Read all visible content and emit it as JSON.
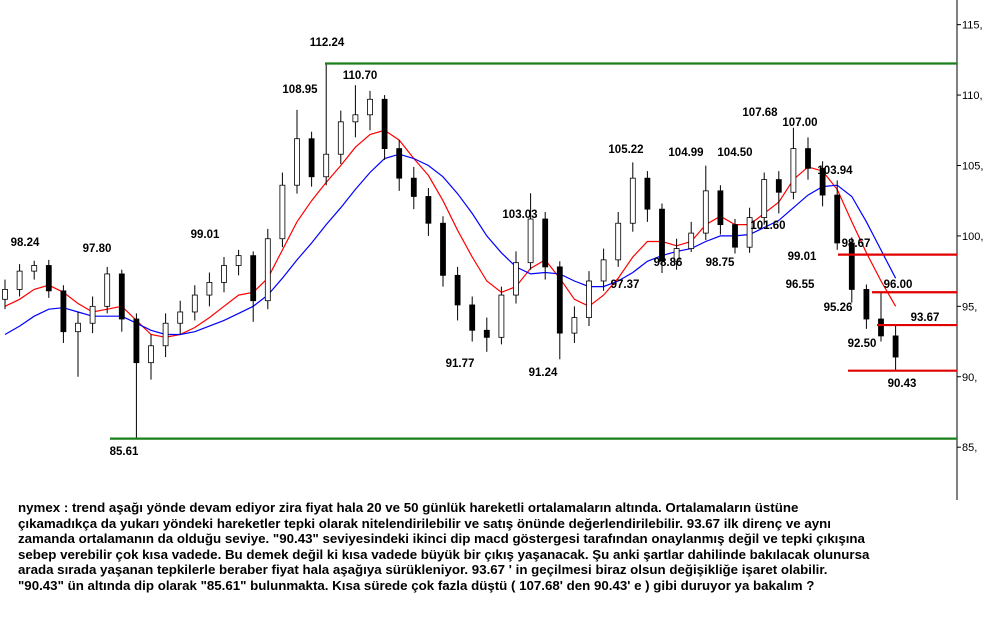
{
  "chart_data": {
    "type": "candlestick",
    "ylim": [
      81.25,
      116.75
    ],
    "yticks": [
      {
        "value": 115,
        "label": "115,"
      },
      {
        "value": 110,
        "label": "110,"
      },
      {
        "value": 105,
        "label": "105,"
      },
      {
        "value": 100,
        "label": "100,"
      },
      {
        "value": 95,
        "label": "95,"
      },
      {
        "value": 90,
        "label": "90,"
      },
      {
        "value": 85,
        "label": "85,"
      }
    ],
    "up_color": "#ffffff",
    "down_color": "#000000",
    "wick_color": "#000000",
    "open": [
      95.5,
      96.2,
      97.5,
      97.9,
      96.1,
      93.2,
      93.8,
      95.0,
      97.3,
      94.1,
      91.0,
      92.2,
      93.8,
      94.6,
      95.8,
      96.7,
      97.9,
      98.6,
      95.4,
      99.8,
      103.6,
      106.9,
      104.2,
      105.8,
      108.1,
      108.6,
      109.7,
      106.2,
      104.1,
      102.8,
      100.9,
      97.2,
      95.1,
      93.3,
      92.8,
      95.8,
      98.1,
      101.2,
      97.8,
      93.1,
      94.2,
      96.8,
      98.3,
      100.9,
      104.1,
      101.9,
      98.2,
      99.1,
      100.2,
      103.2,
      100.8,
      99.2,
      101.3,
      104.0,
      103.1,
      106.2,
      104.8,
      102.9,
      99.5,
      96.2,
      94.1,
      92.9
    ],
    "high": [
      96.9,
      98.0,
      98.24,
      98.3,
      96.5,
      94.6,
      95.7,
      97.8,
      97.6,
      94.5,
      93.0,
      94.5,
      95.4,
      96.5,
      97.4,
      98.5,
      99.01,
      98.9,
      100.5,
      104.5,
      108.95,
      107.4,
      112.24,
      108.9,
      110.7,
      110.3,
      110.0,
      106.8,
      104.9,
      103.4,
      101.4,
      97.8,
      95.7,
      94.2,
      96.4,
      98.9,
      103.03,
      101.7,
      98.2,
      95.0,
      97.5,
      99.1,
      101.7,
      105.22,
      104.6,
      102.3,
      99.8,
      101.0,
      104.99,
      103.6,
      101.2,
      102.0,
      104.5,
      104.6,
      107.68,
      107.0,
      105.3,
      103.94,
      99.9,
      96.55,
      96.0,
      93.67
    ],
    "low": [
      94.8,
      95.7,
      96.9,
      95.6,
      92.4,
      90.0,
      93.1,
      94.5,
      93.2,
      85.61,
      89.8,
      91.4,
      93.0,
      94.0,
      95.0,
      96.0,
      97.2,
      93.9,
      94.8,
      99.2,
      103.0,
      103.5,
      103.6,
      105.1,
      107.0,
      107.5,
      105.4,
      103.2,
      101.9,
      100.0,
      96.4,
      94.0,
      92.5,
      91.77,
      92.3,
      95.2,
      97.6,
      96.9,
      91.24,
      92.4,
      93.6,
      96.1,
      97.8,
      100.3,
      101.0,
      97.37,
      97.6,
      98.86,
      99.7,
      100.1,
      98.75,
      98.8,
      100.8,
      101.6,
      102.6,
      104.0,
      102.1,
      99.01,
      95.26,
      93.4,
      92.5,
      90.43
    ],
    "close": [
      96.2,
      97.5,
      97.9,
      96.1,
      93.2,
      93.8,
      95.0,
      97.3,
      94.1,
      91.0,
      92.2,
      93.8,
      94.6,
      95.8,
      96.7,
      97.9,
      98.6,
      95.4,
      99.8,
      103.6,
      106.9,
      104.2,
      105.8,
      108.1,
      108.6,
      109.7,
      106.2,
      104.1,
      102.8,
      100.9,
      97.2,
      95.1,
      93.3,
      92.8,
      95.8,
      98.1,
      101.2,
      97.8,
      93.1,
      94.2,
      96.8,
      98.3,
      100.9,
      104.1,
      101.9,
      98.2,
      99.1,
      100.2,
      103.2,
      100.8,
      99.2,
      101.3,
      104.0,
      103.1,
      106.2,
      104.8,
      102.9,
      99.5,
      96.2,
      94.1,
      92.9,
      91.4
    ],
    "moving_averages": [
      {
        "color": "#ff0000",
        "values": [
          95.0,
          95.5,
          96.2,
          96.5,
          96.0,
          95.2,
          94.6,
          94.8,
          95.0,
          94.0,
          93.0,
          92.8,
          93.0,
          93.5,
          94.2,
          95.0,
          95.8,
          96.0,
          97.0,
          99.0,
          101.0,
          102.5,
          103.8,
          105.0,
          106.3,
          107.2,
          107.5,
          106.8,
          105.5,
          104.3,
          102.5,
          100.4,
          98.5,
          96.8,
          96.0,
          96.4,
          97.7,
          98.3,
          97.0,
          95.5,
          95.0,
          95.8,
          97.0,
          98.5,
          99.6,
          99.6,
          99.3,
          99.6,
          100.8,
          101.4,
          100.8,
          100.8,
          101.6,
          102.4,
          104.0,
          104.9,
          104.6,
          103.3,
          101.0,
          98.8,
          96.8,
          95.0
        ]
      },
      {
        "color": "#0000ff",
        "values": [
          93.0,
          93.6,
          94.3,
          94.8,
          94.9,
          94.6,
          94.3,
          94.3,
          94.3,
          93.8,
          93.3,
          93.0,
          93.0,
          93.2,
          93.6,
          94.0,
          94.5,
          95.0,
          95.8,
          97.0,
          98.3,
          99.5,
          100.8,
          102.0,
          103.3,
          104.5,
          105.5,
          105.8,
          105.5,
          105.0,
          104.2,
          103.0,
          101.6,
          100.0,
          98.8,
          97.8,
          97.3,
          97.4,
          97.3,
          96.8,
          96.4,
          96.4,
          96.8,
          97.4,
          98.2,
          98.6,
          98.9,
          99.1,
          99.6,
          100.0,
          100.0,
          100.1,
          100.6,
          101.1,
          102.0,
          102.9,
          103.5,
          103.6,
          102.8,
          101.0,
          99.0,
          97.0
        ]
      }
    ],
    "annotations": [
      {
        "value": 112.24,
        "line": "#1a7f1a"
      },
      {
        "value": 110.7,
        "label": "110.70"
      },
      {
        "value": 108.95
      },
      {
        "value": 98.24
      },
      {
        "value": 97.8,
        "label": "97.80"
      },
      {
        "value": 99.01
      },
      {
        "value": 85.61,
        "line": "#1a7f1a"
      },
      {
        "value": 91.77
      },
      {
        "value": 103.03
      },
      {
        "value": 91.24
      },
      {
        "value": 105.22
      },
      {
        "value": 104.99
      },
      {
        "value": 104.5,
        "label": "104.50"
      },
      {
        "value": 107.68
      },
      {
        "value": 107,
        "label": "107.00"
      },
      {
        "value": 101.6,
        "label": "101.60"
      },
      {
        "value": 97.37
      },
      {
        "value": 98.86
      },
      {
        "value": 98.75
      },
      {
        "value": 103.94
      },
      {
        "value": 99.01
      },
      {
        "value": 98.67,
        "line": "#e00000"
      },
      {
        "value": 96.55
      },
      {
        "value": 96,
        "label": "96.00",
        "line": "#e00000"
      },
      {
        "value": 95.26
      },
      {
        "value": 93.67,
        "line": "#e00000"
      },
      {
        "value": 92.5,
        "label": "92.50"
      },
      {
        "value": 90.43,
        "line": "#e00000"
      }
    ]
  },
  "description": [
    "nymex : trend aşağı yönde devam ediyor zira fiyat hala 20 ve 50 günlük hareketli ortalamaların altında. Ortalamaların üstüne",
    "çıkamadıkça da yukarı yöndeki hareketler tepki olarak nitelendirilebilir ve satış önünde değerlendirilebilir. 93.67 ilk direnç ve aynı",
    "zamanda ortalamanın da olduğu seviye. \"90.43\" seviyesindeki ikinci dip macd göstergesi tarafından onaylanmış değil ve tepki çıkışına",
    "sebep verebilir çok kısa vadede. Bu demek değil ki kısa vadede büyük bir çıkış yaşanacak. Şu anki şartlar dahilinde bakılacak olunursa",
    "arada sırada yaşanan tepkilerle beraber fiyat hala aşağıya sürükleniyor. 93.67 ' in geçilmesi biraz olsun değişikliğe işaret olabilir.",
    "\"90.43\" ün altında dip olarak \"85.61\" bulunmakta. Kısa sürede çok fazla düştü ( 107.68' den 90.43' e ) gibi duruyor ya bakalım ?"
  ]
}
